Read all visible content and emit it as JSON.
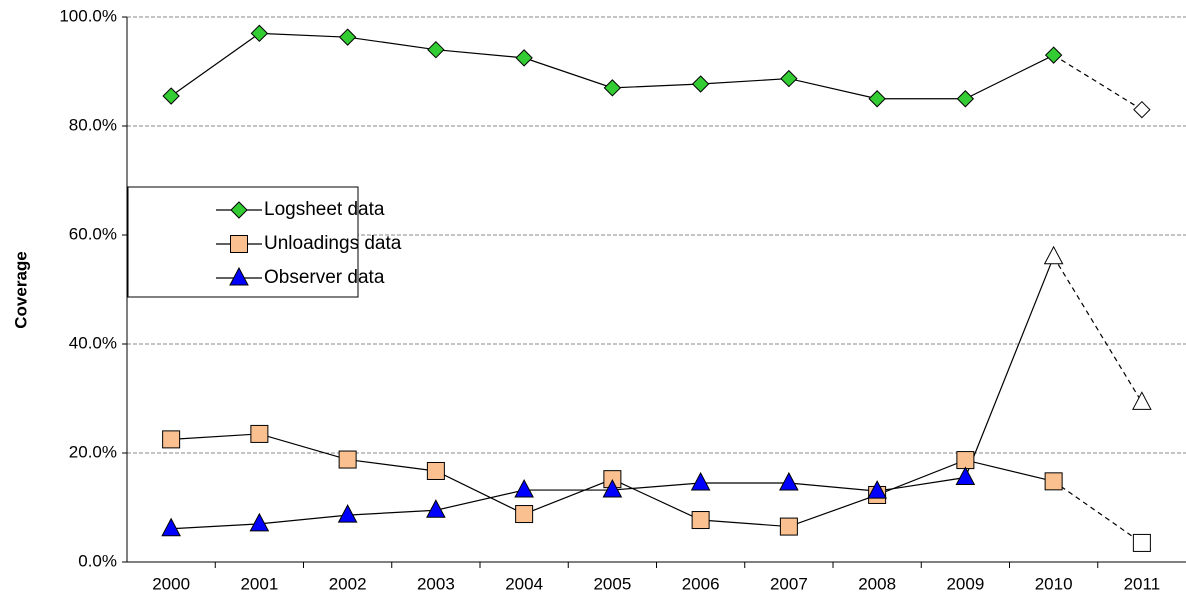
{
  "chart_data": {
    "type": "line",
    "y_label": "Coverage",
    "categories": [
      "2000",
      "2001",
      "2002",
      "2003",
      "2004",
      "2005",
      "2006",
      "2007",
      "2008",
      "2009",
      "2010",
      "2011"
    ],
    "ylim": [
      0,
      100
    ],
    "yticks": [
      {
        "value": 0,
        "label": "0.0%"
      },
      {
        "value": 20,
        "label": "20.0%"
      },
      {
        "value": 40,
        "label": "40.0%"
      },
      {
        "value": 60,
        "label": "60.0%"
      },
      {
        "value": 80,
        "label": "80.0%"
      },
      {
        "value": 100,
        "label": "100.0%"
      }
    ],
    "grid": true,
    "legend": "left",
    "series": [
      {
        "name": "Logsheet data",
        "color": "#33cc33",
        "marker": "diamond",
        "values": [
          85.5,
          97,
          96.3,
          94,
          92.5,
          87,
          87.7,
          88.7,
          85,
          85,
          93,
          83
        ],
        "dashed_from": 10,
        "hollow_points": [
          11
        ]
      },
      {
        "name": "Unloadings data",
        "color": "#fac090",
        "marker": "square",
        "values": [
          22.5,
          23.5,
          18.8,
          16.7,
          8.8,
          15.2,
          7.7,
          6.5,
          12.3,
          18.7,
          14.8,
          3.5
        ],
        "dashed_from": 10,
        "hollow_points": [
          11
        ]
      },
      {
        "name": "Observer data",
        "color": "#0000ff",
        "marker": "triangle",
        "values": [
          6.1,
          7,
          8.6,
          9.5,
          13.2,
          13.2,
          14.5,
          14.5,
          13,
          15.5,
          56,
          29.3
        ],
        "dashed_from": 10,
        "hollow_points": [
          10,
          11
        ]
      }
    ]
  }
}
